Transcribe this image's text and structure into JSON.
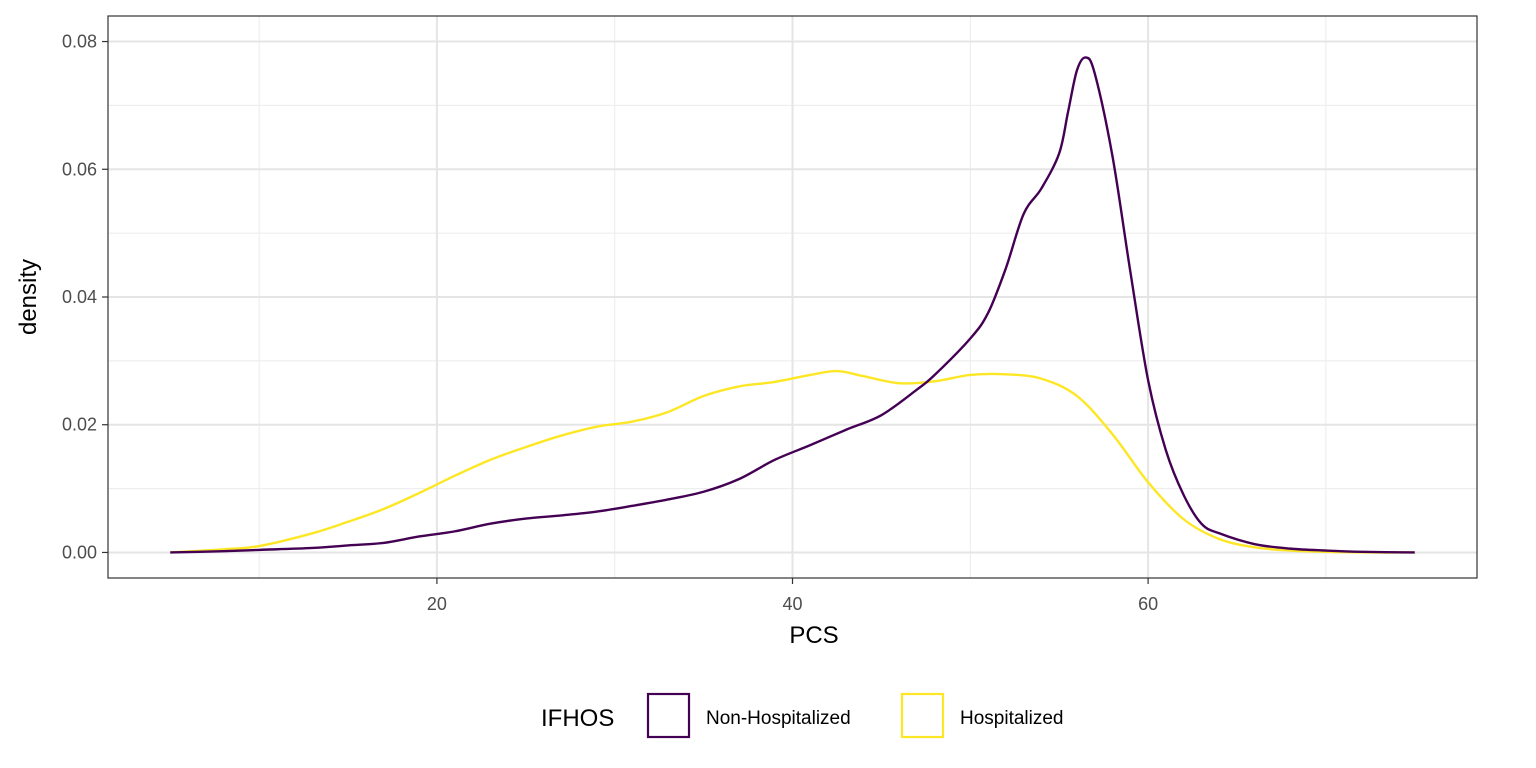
{
  "chart_data": {
    "type": "line",
    "xlabel": "PCS",
    "ylabel": "density",
    "xlim": [
      5,
      75
    ],
    "ylim": [
      0,
      0.08
    ],
    "x_ticks": [
      20,
      40,
      60
    ],
    "x_tick_labels": [
      "20",
      "40",
      "60"
    ],
    "y_ticks": [
      0,
      0.02,
      0.04,
      0.06,
      0.08
    ],
    "y_tick_labels": [
      "0.00",
      "0.02",
      "0.04",
      "0.06",
      "0.08"
    ],
    "grid": true,
    "legend": {
      "title": "IFHOS",
      "position": "bottom"
    },
    "series": [
      {
        "name": "Non-Hospitalized",
        "color": "#440154",
        "x": [
          5,
          8,
          10,
          13,
          15,
          17,
          19,
          21,
          23,
          25,
          27,
          29,
          31,
          33,
          35,
          37,
          39,
          41,
          43,
          45,
          47,
          48,
          50,
          51,
          52,
          53,
          54,
          55,
          55.5,
          56,
          56.5,
          57,
          58,
          59,
          60,
          61,
          62,
          63,
          64,
          66,
          68,
          70,
          72,
          75
        ],
        "y": [
          0,
          0.0002,
          0.0004,
          0.0007,
          0.0011,
          0.0015,
          0.0025,
          0.0033,
          0.0045,
          0.0053,
          0.0058,
          0.0064,
          0.0073,
          0.0083,
          0.0095,
          0.0115,
          0.0145,
          0.0168,
          0.0192,
          0.0215,
          0.0255,
          0.0278,
          0.0335,
          0.0375,
          0.0445,
          0.053,
          0.057,
          0.0625,
          0.069,
          0.0755,
          0.0775,
          0.075,
          0.062,
          0.044,
          0.027,
          0.016,
          0.009,
          0.0045,
          0.003,
          0.0013,
          0.0006,
          0.0003,
          0.0001,
          0
        ]
      },
      {
        "name": "Hospitalized",
        "color": "#fde725",
        "x": [
          5,
          8,
          10,
          13,
          15,
          17,
          19,
          21,
          23,
          25,
          27,
          29,
          31,
          33,
          35,
          37,
          39,
          41,
          42.5,
          44,
          46,
          48,
          50,
          52,
          54,
          56,
          58,
          60,
          62,
          64,
          66,
          68,
          70,
          72,
          75
        ],
        "y": [
          0,
          0.0005,
          0.001,
          0.003,
          0.0048,
          0.0068,
          0.0093,
          0.012,
          0.0145,
          0.0165,
          0.0183,
          0.0197,
          0.0205,
          0.022,
          0.0245,
          0.026,
          0.0267,
          0.0278,
          0.0284,
          0.0276,
          0.0265,
          0.0268,
          0.0278,
          0.0279,
          0.0272,
          0.0245,
          0.0185,
          0.011,
          0.0052,
          0.0021,
          0.0008,
          0.0003,
          0.0001,
          0,
          0
        ]
      }
    ]
  }
}
